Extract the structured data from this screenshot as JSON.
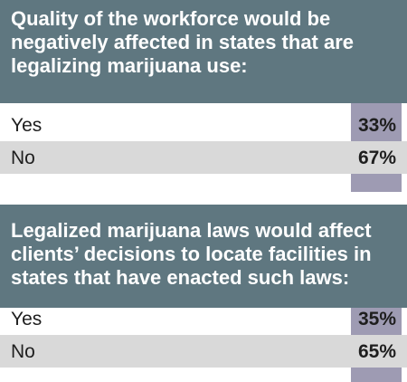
{
  "chart_data": [
    {
      "type": "table",
      "title": "Quality of the workforce would be negatively affected in states that are legalizing marijuana use:",
      "categories": [
        "Yes",
        "No"
      ],
      "values": [
        33,
        67
      ],
      "value_labels": [
        "33%",
        "67%"
      ]
    },
    {
      "type": "table",
      "title": "Legalized marijuana laws would affect clients’ decisions to locate facilities in states that have enacted such laws:",
      "categories": [
        "Yes",
        "No"
      ],
      "values": [
        35,
        65
      ],
      "value_labels": [
        "35%",
        "65%"
      ]
    }
  ],
  "colors": {
    "header": "#5f7780",
    "value_column": "#9e9bb3",
    "alt_row": "#d9d9d9"
  }
}
